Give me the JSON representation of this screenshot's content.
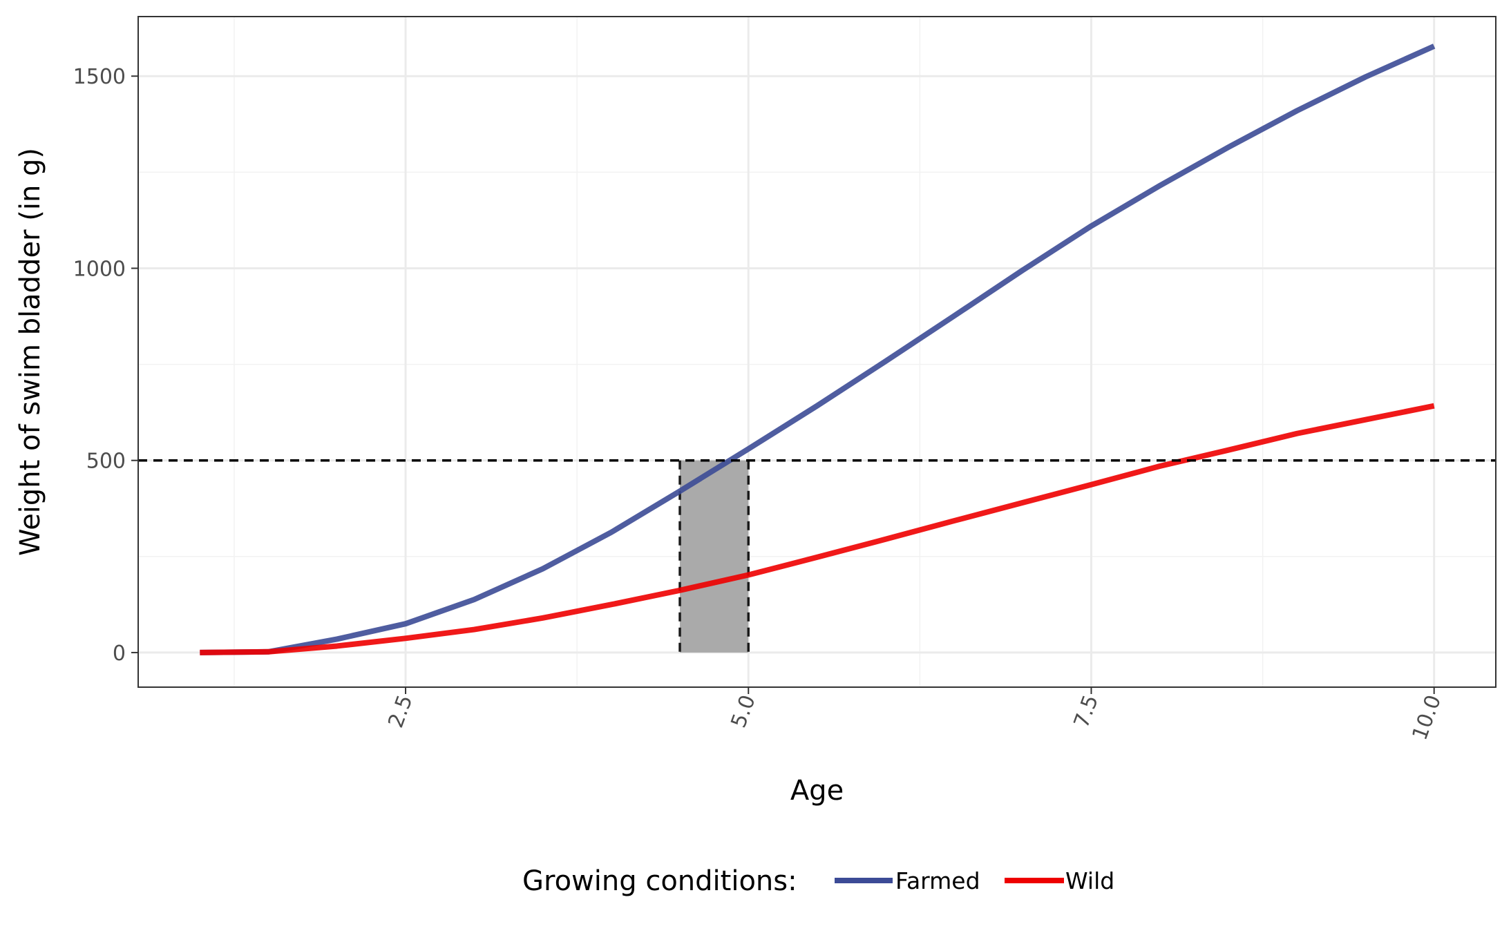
{
  "chart_data": {
    "type": "line",
    "xlabel": "Age",
    "ylabel": "Weight of swim bladder (in g)",
    "xlim": [
      0.55,
      10.45
    ],
    "ylim": [
      -90,
      1655
    ],
    "x_ticks": [
      2.5,
      5.0,
      7.5,
      10.0
    ],
    "x_tick_labels": [
      "2.5",
      "5.0",
      "7.5",
      "10.0"
    ],
    "y_ticks": [
      0,
      500,
      1000,
      1500
    ],
    "y_tick_labels": [
      "0",
      "500",
      "1000",
      "1500"
    ],
    "grid": true,
    "legend_placement": "bottom",
    "legend_title": "Growing conditions:",
    "series": [
      {
        "name": "Farmed",
        "color": "#3c4b96",
        "x": [
          1.0,
          1.5,
          2.0,
          2.5,
          3.0,
          3.5,
          4.0,
          4.5,
          5.0,
          5.5,
          6.0,
          6.5,
          7.0,
          7.5,
          8.0,
          8.5,
          9.0,
          9.5,
          10.0
        ],
        "y": [
          0,
          2,
          35,
          75,
          138,
          218,
          313,
          420,
          530,
          642,
          758,
          876,
          995,
          1110,
          1215,
          1315,
          1410,
          1498,
          1578
        ]
      },
      {
        "name": "Wild",
        "color": "#ee0000",
        "x": [
          1.0,
          1.5,
          2.0,
          2.5,
          3.0,
          3.5,
          4.0,
          4.5,
          5.0,
          5.5,
          6.0,
          6.5,
          7.0,
          7.5,
          8.0,
          8.5,
          9.0,
          9.5,
          10.0
        ],
        "y": [
          0,
          2,
          17,
          37,
          60,
          90,
          125,
          162,
          202,
          248,
          295,
          343,
          390,
          437,
          485,
          527,
          570,
          606,
          642
        ]
      }
    ],
    "reference_line": {
      "y": 500,
      "style": "dashed",
      "color": "#000000"
    },
    "highlight_region": {
      "x": [
        4.5,
        5.0
      ],
      "y": [
        0,
        500
      ],
      "fill": "#aaaaaa",
      "border": "dashed"
    }
  }
}
